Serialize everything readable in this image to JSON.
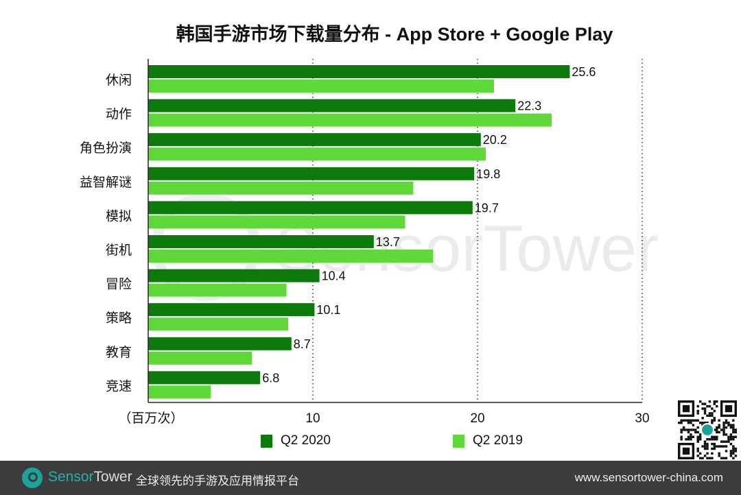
{
  "chart_data": {
    "type": "bar",
    "orientation": "horizontal",
    "title": "韩国手游市场下载量分布 - App Store + Google Play",
    "xlabel": "（百万次）",
    "xlim": [
      0,
      30
    ],
    "xticks": [
      "10",
      "20",
      "30"
    ],
    "grid": "vertical dotted",
    "legend_position": "bottom",
    "categories": [
      "休闲",
      "动作",
      "角色扮演",
      "益智解谜",
      "模拟",
      "街机",
      "冒险",
      "策略",
      "教育",
      "竞速"
    ],
    "series": [
      {
        "name": "Q2 2020",
        "color": "#0b7a0b",
        "values": [
          25.6,
          22.3,
          20.2,
          19.8,
          19.7,
          13.7,
          10.4,
          10.1,
          8.7,
          6.8
        ],
        "labels": [
          "25.6",
          "22.3",
          "20.2",
          "19.8",
          "19.7",
          "13.7",
          "10.4",
          "10.1",
          "8.7",
          "6.8"
        ]
      },
      {
        "name": "Q2 2019",
        "color": "#5fd83a",
        "values": [
          21.0,
          24.5,
          20.5,
          16.1,
          15.6,
          17.3,
          8.4,
          8.5,
          6.3,
          3.8
        ]
      }
    ]
  },
  "watermark": "SensorTower",
  "footer": {
    "brand_a": "Sensor",
    "brand_b": "Tower",
    "slogan": "全球领先的手游及应用情报平台",
    "url": "www.sensortower-china.com"
  }
}
